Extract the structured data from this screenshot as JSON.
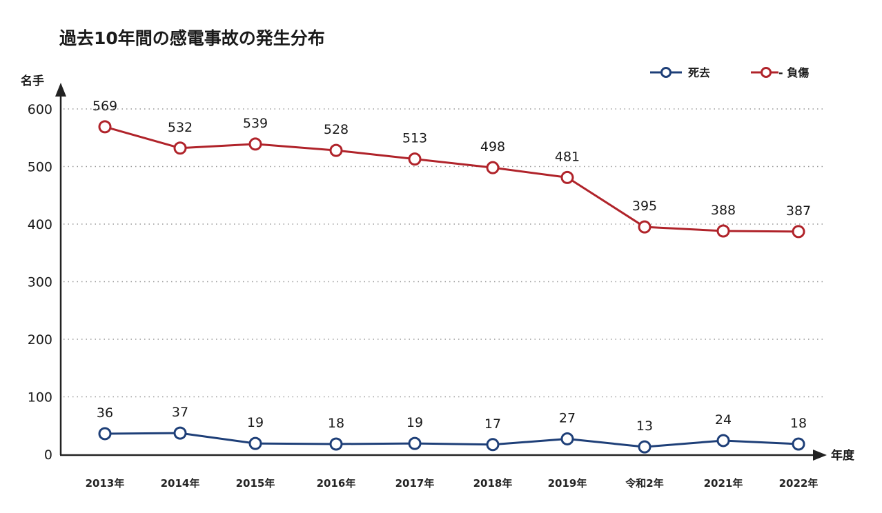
{
  "chart_data": {
    "type": "line",
    "title": "過去10年間の感電事故の発生分布",
    "xlabel": "年度",
    "ylabel": "名手",
    "categories": [
      "2013年",
      "2014年",
      "2015年",
      "2016年",
      "2017年",
      "2018年",
      "2019年",
      "令和2年",
      "2021年",
      "2022年"
    ],
    "yticks": [
      "0",
      "100",
      "200",
      "300",
      "400",
      "500",
      "600"
    ],
    "ylim": [
      0,
      600
    ],
    "grid": true,
    "legend_position": "top-right",
    "series": [
      {
        "name": "死去",
        "legend_label": "死去",
        "color": "#1e3f78",
        "values": [
          36,
          37,
          19,
          18,
          19,
          17,
          27,
          13,
          24,
          18
        ]
      },
      {
        "name": "負傷",
        "legend_label": "- 負傷",
        "color": "#b0232a",
        "values": [
          569,
          532,
          539,
          528,
          513,
          498,
          481,
          395,
          388,
          387
        ]
      }
    ]
  }
}
